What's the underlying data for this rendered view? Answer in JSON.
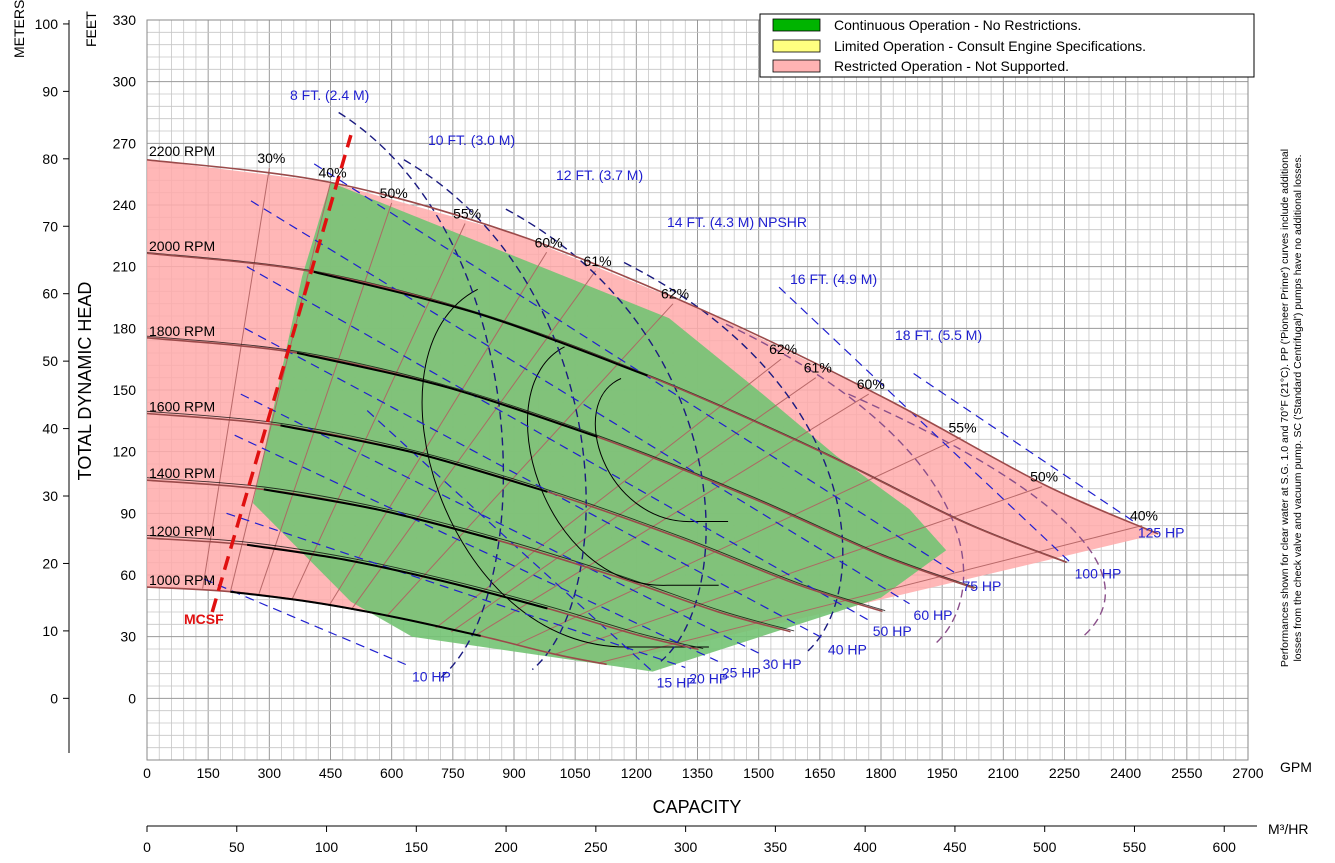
{
  "chart_data": {
    "type": "line",
    "title": "",
    "xlabel": "CAPACITY",
    "ylabel": "TOTAL DYNAMIC HEAD",
    "x_units_label": "GPM",
    "x2_units_label": "M³/HR",
    "y_units_label": "FEET",
    "y2_units_label": "METERS",
    "xlim": [
      0,
      2700
    ],
    "ylim": [
      -30,
      330
    ],
    "x_ticks": [
      0,
      150,
      300,
      450,
      600,
      750,
      900,
      1050,
      1200,
      1350,
      1500,
      1650,
      1800,
      1950,
      2100,
      2250,
      2400,
      2550,
      2700
    ],
    "x2_ticks": [
      0,
      50,
      100,
      150,
      200,
      250,
      300,
      350,
      400,
      450,
      500,
      550,
      600
    ],
    "y_ticks": [
      0,
      30,
      60,
      90,
      120,
      150,
      180,
      210,
      240,
      270,
      300,
      330
    ],
    "y2_ticks": [
      0,
      10,
      20,
      30,
      40,
      50,
      60,
      70,
      80,
      90,
      100
    ],
    "grid": true,
    "legend_position": "top-right",
    "legend": [
      {
        "label": "Continuous Operation - No Restrictions.",
        "color": "#00b400"
      },
      {
        "label": "Limited Operation - Consult Engine Specifications.",
        "color": "#ffff80"
      },
      {
        "label": "Restricted Operation - Not Supported.",
        "color": "#ffb3b3"
      }
    ],
    "note": [
      "Performances shown for clear water at S.G. 1.0 and 70°F (21°C). PP ('Pioneer Prime') curves include additional",
      "losses from the check valve and vacuum pump. SC ('Standard Centrifugal') pumps have no additional losses."
    ],
    "colors": {
      "rpm_curve": "#9b4a4a",
      "hp_line": "#1f1fd0",
      "npsh_line": "#1a1a80",
      "mcsf": "#e01010",
      "green": "#73c373",
      "pink": "#ffaaaa"
    },
    "rpm_curves": [
      {
        "label": "2200 RPM",
        "rpm": 2200,
        "points": [
          [
            0,
            262
          ],
          [
            450,
            251
          ],
          [
            900,
            226
          ],
          [
            1350,
            190
          ],
          [
            1800,
            147
          ],
          [
            2200,
            104
          ],
          [
            2480,
            80
          ]
        ]
      },
      {
        "label": "2000 RPM",
        "rpm": 2000
      },
      {
        "label": "1800 RPM",
        "rpm": 1800
      },
      {
        "label": "1600 RPM",
        "rpm": 1600
      },
      {
        "label": "1400 RPM",
        "rpm": 1400
      },
      {
        "label": "1200 RPM",
        "rpm": 1200
      },
      {
        "label": "1000 RPM",
        "rpm": 1000
      }
    ],
    "efficiency_labels": [
      {
        "label": "30%",
        "x": 300,
        "y": 258
      },
      {
        "label": "40%",
        "x": 450,
        "y": 251
      },
      {
        "label": "50%",
        "x": 600,
        "y": 241
      },
      {
        "label": "55%",
        "x": 780,
        "y": 231
      },
      {
        "label": "60%",
        "x": 980,
        "y": 217
      },
      {
        "label": "61%",
        "x": 1100,
        "y": 208
      },
      {
        "label": "62%",
        "x": 1290,
        "y": 192
      },
      {
        "label": "62%",
        "x": 1555,
        "y": 165
      },
      {
        "label": "61%",
        "x": 1640,
        "y": 156
      },
      {
        "label": "60%",
        "x": 1770,
        "y": 148
      },
      {
        "label": "55%",
        "x": 1995,
        "y": 127
      },
      {
        "label": "50%",
        "x": 2195,
        "y": 103
      },
      {
        "label": "40%",
        "x": 2440,
        "y": 84
      }
    ],
    "hp_lines": [
      {
        "label": "10 HP",
        "from": [
          140,
          58
        ],
        "to": [
          640,
          16
        ]
      },
      {
        "label": "15 HP",
        "from": [
          540,
          140
        ],
        "to": [
          1240,
          13
        ]
      },
      {
        "label": "20 HP",
        "from": [
          195,
          90
        ],
        "to": [
          1320,
          15
        ]
      },
      {
        "label": "25 HP",
        "from": [
          215,
          128
        ],
        "to": [
          1400,
          18
        ]
      },
      {
        "label": "30 HP",
        "from": [
          230,
          148
        ],
        "to": [
          1500,
          22
        ]
      },
      {
        "label": "40 HP",
        "from": [
          240,
          180
        ],
        "to": [
          1660,
          29
        ]
      },
      {
        "label": "50 HP",
        "from": [
          245,
          210
        ],
        "to": [
          1770,
          38
        ]
      },
      {
        "label": "60 HP",
        "from": [
          255,
          242
        ],
        "to": [
          1870,
          46
        ]
      },
      {
        "label": "75 HP",
        "from": [
          410,
          260
        ],
        "to": [
          1990,
          60
        ]
      },
      {
        "label": "100 HP",
        "from": [
          1550,
          200
        ],
        "to": [
          2265,
          66
        ]
      },
      {
        "label": "125 HP",
        "from": [
          1880,
          158
        ],
        "to": [
          2420,
          86
        ]
      }
    ],
    "mcsf": {
      "label": "MCSF",
      "points": [
        [
          160,
          42
        ],
        [
          500,
          274
        ]
      ]
    },
    "npshr_labels": [
      {
        "label": "8 FT. (2.4 M)"
      },
      {
        "label": "10 FT. (3.0 M)"
      },
      {
        "label": "12 FT. (3.7 M)"
      },
      {
        "label": "14 FT. (4.3 M) NPSHR"
      },
      {
        "label": "16 FT. (4.9 M)"
      },
      {
        "label": "18 FT. (5.5 M)"
      }
    ]
  }
}
